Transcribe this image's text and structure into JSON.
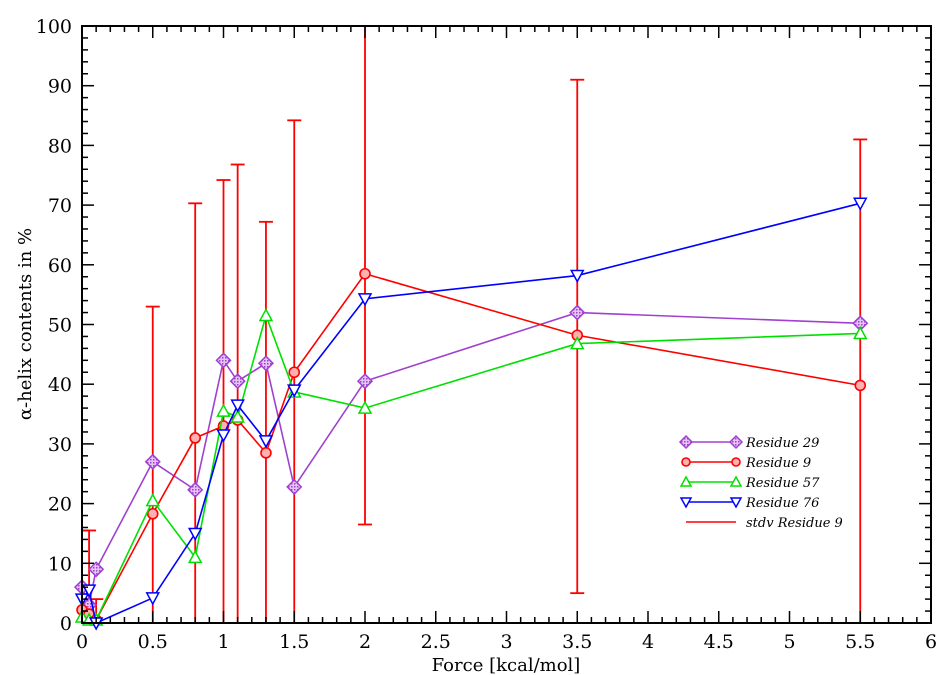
{
  "chart_data": {
    "type": "line",
    "xlabel": "Force [kcal/mol]",
    "ylabel_main": "-helix contents in %",
    "ylabel_symbol": "α",
    "xlim": [
      0,
      6
    ],
    "ylim": [
      0,
      100
    ],
    "x_ticks": [
      "0",
      "0.5",
      "1",
      "1.5",
      "2",
      "2.5",
      "3",
      "3.5",
      "4",
      "4.5",
      "5",
      "5.5",
      "6"
    ],
    "y_ticks": [
      "0",
      "10",
      "20",
      "30",
      "40",
      "50",
      "60",
      "70",
      "80",
      "90",
      "100"
    ],
    "grid": false,
    "legend_position": "bottom-right",
    "series": [
      {
        "name": "Residue 29",
        "color": "#a040d0",
        "marker": "diamond",
        "x": [
          0,
          0.05,
          0.1,
          0.5,
          0.8,
          1.0,
          1.1,
          1.3,
          1.5,
          2.0,
          3.5,
          5.5
        ],
        "y": [
          6,
          3,
          9,
          27,
          22.3,
          44,
          40.5,
          43.5,
          22.8,
          40.5,
          52,
          50.2
        ]
      },
      {
        "name": "Residue 9",
        "color": "#ff0000",
        "marker": "circle",
        "x": [
          0,
          0.05,
          0.1,
          0.5,
          0.8,
          1.0,
          1.1,
          1.3,
          1.5,
          2.0,
          3.5,
          5.5
        ],
        "y": [
          2.2,
          1.5,
          0.5,
          18.3,
          31,
          33,
          34,
          28.5,
          42,
          58.5,
          48.2,
          39.8
        ]
      },
      {
        "name": "Residue 57",
        "color": "#00e000",
        "marker": "triangle-up",
        "x": [
          0,
          0.05,
          0.1,
          0.5,
          0.8,
          1.0,
          1.1,
          1.3,
          1.5,
          2.0,
          3.5,
          5.5
        ],
        "y": [
          1,
          0.5,
          0.5,
          20.5,
          11,
          35.5,
          34.5,
          51.5,
          38.7,
          36,
          46.8,
          48.5
        ]
      },
      {
        "name": "Residue 76",
        "color": "#0000ff",
        "marker": "triangle-down",
        "x": [
          0,
          0.05,
          0.1,
          0.5,
          0.8,
          1.0,
          1.1,
          1.3,
          1.5,
          2.0,
          3.5,
          5.5
        ],
        "y": [
          4,
          5.5,
          0,
          4.2,
          15,
          31.5,
          36.5,
          30.5,
          39,
          54.3,
          58.2,
          70.3
        ]
      }
    ],
    "error_bars": {
      "name": "stdv Residue 9",
      "color": "#ff0000",
      "x": [
        0,
        0.05,
        0.1,
        0.5,
        0.8,
        1.0,
        1.1,
        1.3,
        1.5,
        2.0,
        3.5,
        5.5
      ],
      "low": [
        0,
        0,
        0,
        0,
        0,
        0,
        0,
        0,
        0,
        16.5,
        5,
        0
      ],
      "high": [
        15.5,
        15.5,
        4,
        53,
        70.3,
        74.2,
        76.8,
        67.2,
        84.2,
        100,
        91,
        81
      ]
    }
  }
}
